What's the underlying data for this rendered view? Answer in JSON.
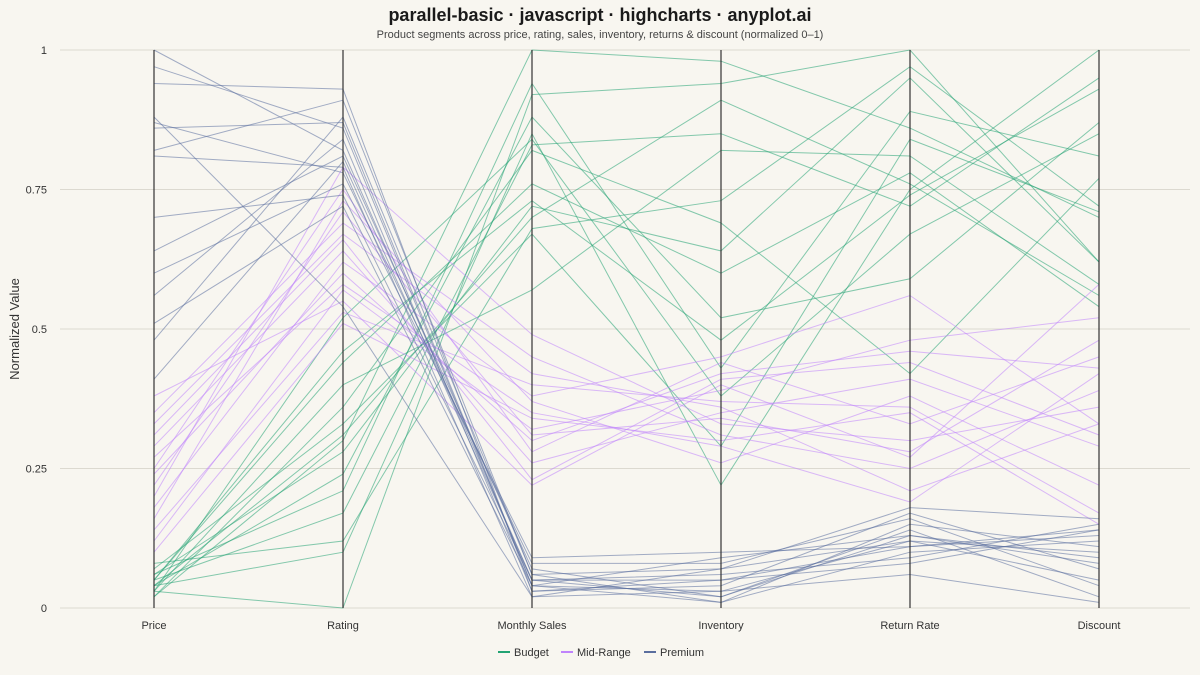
{
  "chart_data": {
    "type": "parallel-coordinates",
    "title": "parallel-basic · javascript · highcharts · anyplot.ai",
    "subtitle": "Product segments across price, rating, sales, inventory, returns & discount (normalized 0–1)",
    "ylabel": "Normalized Value",
    "ylim": [
      0,
      1
    ],
    "yticks": [
      {
        "value": 0,
        "label": "0"
      },
      {
        "value": 0.25,
        "label": "0.25"
      },
      {
        "value": 0.5,
        "label": "0.5"
      },
      {
        "value": 0.75,
        "label": "0.75"
      },
      {
        "value": 1,
        "label": "1"
      }
    ],
    "axes": [
      "Price",
      "Rating",
      "Monthly Sales",
      "Inventory",
      "Return Rate",
      "Discount"
    ],
    "grid": true,
    "legend_position": "bottom-center",
    "series": [
      {
        "name": "Budget",
        "color": "#22A373",
        "lines": [
          [
            0.02,
            0.3,
            1.0,
            0.98,
            0.86,
            0.7
          ],
          [
            0.03,
            0.0,
            0.92,
            0.94,
            1.0,
            0.62
          ],
          [
            0.04,
            0.1,
            0.85,
            0.22,
            0.75,
            1.0
          ],
          [
            0.05,
            0.17,
            0.83,
            0.85,
            0.72,
            0.95
          ],
          [
            0.04,
            0.24,
            0.88,
            0.52,
            0.59,
            0.87
          ],
          [
            0.06,
            0.28,
            0.72,
            0.64,
            0.95,
            0.62
          ],
          [
            0.07,
            0.33,
            0.67,
            0.29,
            0.84,
            0.71
          ],
          [
            0.03,
            0.4,
            0.57,
            0.82,
            0.81,
            0.58
          ],
          [
            0.05,
            0.44,
            0.76,
            0.6,
            0.78,
            0.54
          ],
          [
            0.02,
            0.36,
            0.82,
            0.69,
            0.42,
            0.77
          ],
          [
            0.08,
            0.12,
            0.68,
            0.73,
            0.97,
            0.72
          ],
          [
            0.04,
            0.31,
            0.7,
            0.91,
            0.76,
            0.56
          ],
          [
            0.06,
            0.21,
            0.94,
            0.43,
            0.89,
            0.81
          ],
          [
            0.03,
            0.52,
            0.84,
            0.38,
            0.67,
            0.85
          ],
          [
            0.05,
            0.46,
            0.73,
            0.48,
            0.74,
            0.93
          ]
        ]
      },
      {
        "name": "Mid-Range",
        "color": "#C084FC",
        "lines": [
          [
            0.18,
            0.62,
            0.38,
            0.45,
            0.56,
            0.33
          ],
          [
            0.22,
            0.71,
            0.31,
            0.34,
            0.28,
            0.48
          ],
          [
            0.27,
            0.58,
            0.35,
            0.29,
            0.19,
            0.42
          ],
          [
            0.31,
            0.66,
            0.23,
            0.41,
            0.44,
            0.31
          ],
          [
            0.14,
            0.53,
            0.4,
            0.37,
            0.36,
            0.17
          ],
          [
            0.25,
            0.75,
            0.28,
            0.44,
            0.33,
            0.45
          ],
          [
            0.35,
            0.69,
            0.45,
            0.31,
            0.25,
            0.39
          ],
          [
            0.12,
            0.57,
            0.32,
            0.39,
            0.48,
            0.52
          ],
          [
            0.29,
            0.64,
            0.26,
            0.35,
            0.41,
            0.29
          ],
          [
            0.2,
            0.79,
            0.49,
            0.33,
            0.3,
            0.36
          ],
          [
            0.38,
            0.55,
            0.22,
            0.4,
            0.27,
            0.58
          ],
          [
            0.16,
            0.73,
            0.37,
            0.26,
            0.38,
            0.22
          ],
          [
            0.24,
            0.6,
            0.3,
            0.42,
            0.46,
            0.43
          ],
          [
            0.33,
            0.67,
            0.42,
            0.36,
            0.21,
            0.33
          ],
          [
            0.1,
            0.51,
            0.34,
            0.3,
            0.35,
            0.15
          ]
        ]
      },
      {
        "name": "Premium",
        "color": "#5A6E9E",
        "lines": [
          [
            1.0,
            0.82,
            0.05,
            0.02,
            0.13,
            0.08
          ],
          [
            0.94,
            0.93,
            0.03,
            0.05,
            0.11,
            0.14
          ],
          [
            0.87,
            0.78,
            0.08,
            0.08,
            0.16,
            0.04
          ],
          [
            0.86,
            0.87,
            0.04,
            0.01,
            0.1,
            0.12
          ],
          [
            0.82,
            0.91,
            0.06,
            0.07,
            0.18,
            0.16
          ],
          [
            0.81,
            0.79,
            0.02,
            0.03,
            0.12,
            0.1
          ],
          [
            0.7,
            0.74,
            0.05,
            0.06,
            0.09,
            0.15
          ],
          [
            0.64,
            0.81,
            0.07,
            0.02,
            0.14,
            0.02
          ],
          [
            0.6,
            0.76,
            0.09,
            0.1,
            0.11,
            0.13
          ],
          [
            0.56,
            0.84,
            0.03,
            0.04,
            0.17,
            0.07
          ],
          [
            0.51,
            0.72,
            0.04,
            0.09,
            0.13,
            0.09
          ],
          [
            0.48,
            0.88,
            0.06,
            0.01,
            0.15,
            0.11
          ],
          [
            0.41,
            0.8,
            0.05,
            0.05,
            0.08,
            0.14
          ],
          [
            0.88,
            0.54,
            0.02,
            0.07,
            0.12,
            0.05
          ],
          [
            0.97,
            0.86,
            0.04,
            0.03,
            0.06,
            0.01
          ]
        ]
      }
    ]
  }
}
